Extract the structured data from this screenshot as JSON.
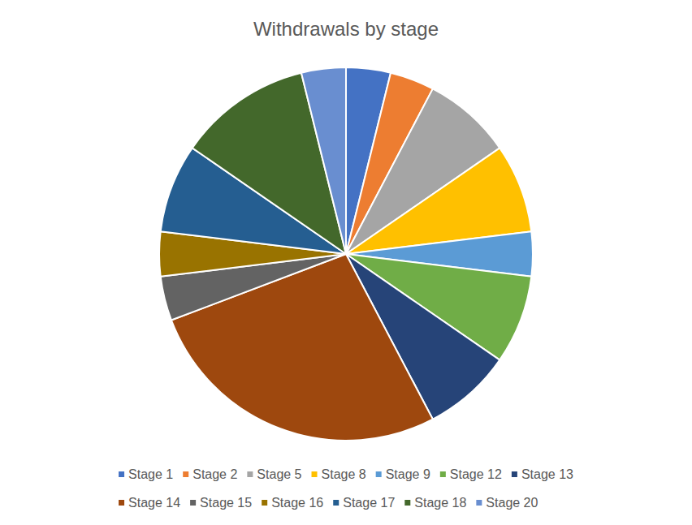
{
  "chart_data": {
    "type": "pie",
    "title": "Withdrawals by stage",
    "categories": [
      "Stage 1",
      "Stage 2",
      "Stage 5",
      "Stage 8",
      "Stage 9",
      "Stage 12",
      "Stage 13",
      "Stage 14",
      "Stage 15",
      "Stage 16",
      "Stage 17",
      "Stage 18",
      "Stage 20"
    ],
    "values": [
      1,
      1,
      2,
      2,
      1,
      2,
      2,
      7,
      1,
      1,
      2,
      3,
      1
    ],
    "colors": [
      "#4472c4",
      "#ed7d31",
      "#a5a5a5",
      "#ffc000",
      "#5b9bd5",
      "#70ad47",
      "#264478",
      "#9e480e",
      "#636363",
      "#997300",
      "#255e91",
      "#43682b",
      "#698ed0"
    ],
    "legend": "bottom"
  }
}
